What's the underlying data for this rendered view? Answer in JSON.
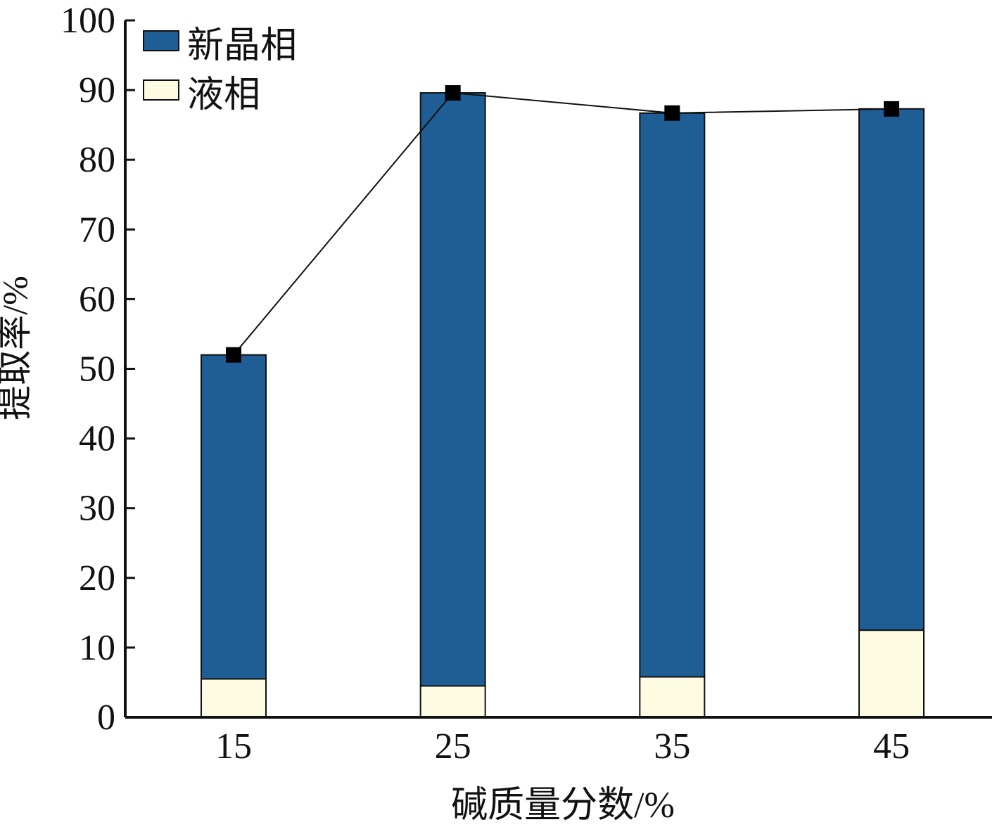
{
  "chart_data": {
    "type": "bar",
    "stacked": true,
    "title": "",
    "xlabel": "碱质量分数/%",
    "ylabel": "提取率/%",
    "categories": [
      "15",
      "25",
      "35",
      "45"
    ],
    "ylim": [
      0,
      100
    ],
    "yticks": [
      "0",
      "10",
      "20",
      "30",
      "40",
      "50",
      "60",
      "70",
      "80",
      "90",
      "100"
    ],
    "legend_position": "top-left",
    "grid": false,
    "series": [
      {
        "name": "液相",
        "color": "#FDFBE1",
        "values": [
          5.5,
          4.5,
          5.8,
          12.5
        ]
      },
      {
        "name": "新晶相",
        "color": "#1F5E94",
        "values": [
          46.5,
          85.1,
          80.9,
          74.8
        ]
      }
    ],
    "total_line": {
      "color": "#111111",
      "marker": "square",
      "values": [
        52.0,
        89.6,
        86.7,
        87.3
      ]
    }
  }
}
